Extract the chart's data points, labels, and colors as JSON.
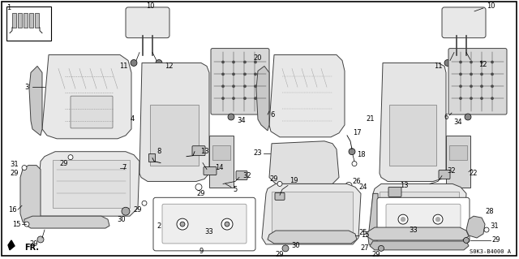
{
  "bg_color": "#ffffff",
  "border_color": "#000000",
  "diagram_code": "S0K3-B4000 A",
  "lc": "#404040",
  "lw": 0.7,
  "title_fontsize": 7,
  "callout_fontsize": 6.5
}
